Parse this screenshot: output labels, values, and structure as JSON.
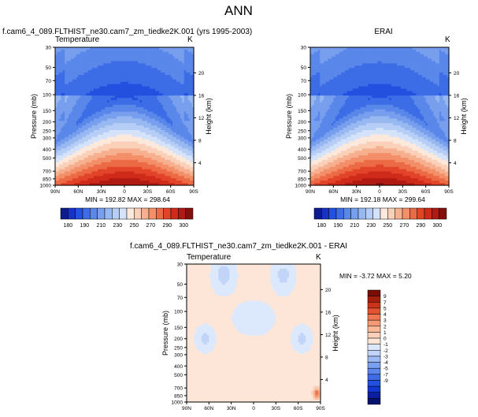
{
  "page": {
    "title": "ANN"
  },
  "colors": {
    "temp_colors": [
      "#0d1a90",
      "#1632c8",
      "#2450e0",
      "#3c6ce6",
      "#5a87ea",
      "#789fee",
      "#98b8f2",
      "#b6ceF6",
      "#d4e2fa",
      "#fde9dc",
      "#fbd0b8",
      "#f7b08f",
      "#f38f69",
      "#ec6a45",
      "#e2442a",
      "#cf2a1a",
      "#b01a12",
      "#84100d"
    ],
    "diff_colors": [
      "#06106e",
      "#0b1ea0",
      "#1336d0",
      "#2450e0",
      "#3f6ae6",
      "#5c86ec",
      "#7aa0f0",
      "#9cbaf4",
      "#c2d4f8",
      "#dce8fb",
      "#fde6d8",
      "#fbd0b8",
      "#f9b896",
      "#f59a74",
      "#ef7850",
      "#e4532f",
      "#cc3418",
      "#a41e0c",
      "#7a0e06"
    ],
    "axes": "#000000",
    "background": "#ffffff"
  },
  "chart_data": [
    {
      "type": "heatmap",
      "title": "f.cam6_4_089.FLTHIST_ne30.cam7_zm_tiedke2K.001 (yrs 1995-2003)",
      "left_label": "Temperature",
      "right_label": "K",
      "xlabel": "",
      "ylabel": "Pressure (mb)",
      "ylabel_right": "Height (km)",
      "x_ticks": [
        "90N",
        "60N",
        "30N",
        "0",
        "30S",
        "60S",
        "90S"
      ],
      "y_ticks": [
        "30",
        "50",
        "70",
        "100",
        "150",
        "200",
        "250",
        "300",
        "400",
        "500",
        "700",
        "850",
        "1000"
      ],
      "y_ticks_right": [
        "4",
        "8",
        "12",
        "16",
        "20"
      ],
      "x_range": [
        90,
        -90
      ],
      "y_range_mb": [
        30,
        1000
      ],
      "stats": "MIN = 192.82  MAX = 298.64",
      "min": 192.82,
      "max": 298.64
    },
    {
      "type": "heatmap",
      "title": "ERAI",
      "left_label": "",
      "right_label": "K",
      "xlabel": "",
      "ylabel": "Pressure (mb)",
      "ylabel_right": "Height (km)",
      "x_ticks": [
        "90N",
        "60N",
        "30N",
        "0",
        "30S",
        "60S",
        "90S"
      ],
      "y_ticks": [
        "30",
        "50",
        "70",
        "100",
        "150",
        "200",
        "250",
        "300",
        "400",
        "500",
        "700",
        "850",
        "1000"
      ],
      "y_ticks_right": [
        "4",
        "8",
        "12",
        "16",
        "20"
      ],
      "x_range": [
        90,
        -90
      ],
      "y_range_mb": [
        30,
        1000
      ],
      "stats": "MIN = 192.18  MAX = 299.64",
      "min": 192.18,
      "max": 299.64
    },
    {
      "type": "heatmap",
      "title": "f.cam6_4_089.FLTHIST_ne30.cam7_zm_tiedke2K.001 - ERAI",
      "left_label": "Temperature",
      "right_label": "K",
      "xlabel": "",
      "ylabel": "Pressure (mb)",
      "ylabel_right": "Height (km)",
      "x_ticks": [
        "90N",
        "60N",
        "30N",
        "0",
        "30S",
        "60S",
        "90S"
      ],
      "y_ticks": [
        "30",
        "50",
        "70",
        "100",
        "150",
        "200",
        "250",
        "300",
        "400",
        "500",
        "700",
        "850",
        "1000"
      ],
      "y_ticks_right": [
        "4",
        "8",
        "12",
        "16",
        "20"
      ],
      "x_range": [
        90,
        -90
      ],
      "y_range_mb": [
        30,
        1000
      ],
      "stats": "MIN =  -3.72  MAX =   5.20",
      "min": -3.72,
      "max": 5.2
    }
  ],
  "colorbars": {
    "temperature_labels": [
      "180",
      "190",
      "210",
      "230",
      "250",
      "270",
      "290",
      "300"
    ],
    "difference_labels": [
      "9",
      "7",
      "5",
      "4",
      "3",
      "2",
      "1",
      "0",
      "-1",
      "-2",
      "-3",
      "-4",
      "-5",
      "-7",
      "-9"
    ]
  }
}
